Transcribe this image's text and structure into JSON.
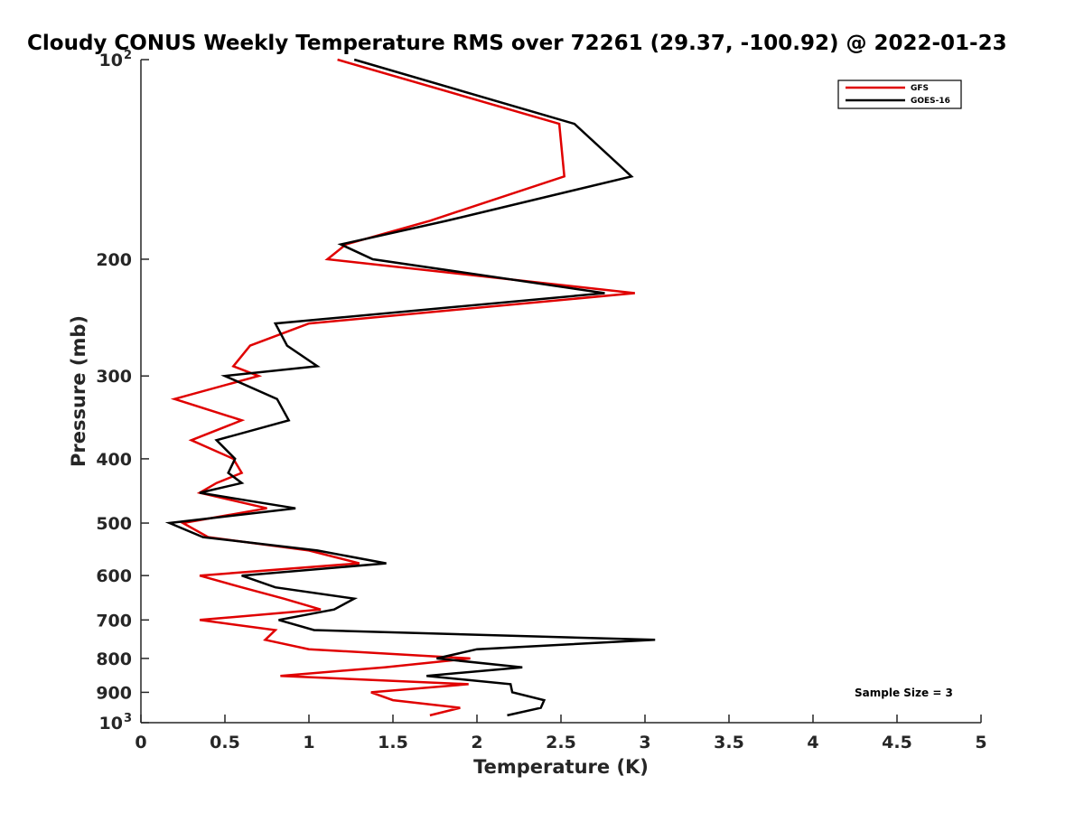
{
  "chart_data": {
    "type": "line",
    "title": "Cloudy CONUS Weekly Temperature RMS over 72261 (29.37, -100.92) @ 2022-01-23",
    "xlabel": "Temperature (K)",
    "ylabel": "Pressure (mb)",
    "xlim": [
      0,
      5
    ],
    "ylim": [
      100,
      1000
    ],
    "yscale": "log",
    "y_reversed": true,
    "grid": false,
    "legend_position": "top-right",
    "x_ticks": [
      "0",
      "0.5",
      "1",
      "1.5",
      "2",
      "2.5",
      "3",
      "3.5",
      "4",
      "4.5",
      "5"
    ],
    "y_ticks": [
      {
        "value": 100,
        "label": "10",
        "sup": "2"
      },
      {
        "value": 200,
        "label": "200",
        "sup": ""
      },
      {
        "value": 300,
        "label": "300",
        "sup": ""
      },
      {
        "value": 400,
        "label": "400",
        "sup": ""
      },
      {
        "value": 500,
        "label": "500",
        "sup": ""
      },
      {
        "value": 600,
        "label": "600",
        "sup": ""
      },
      {
        "value": 700,
        "label": "700",
        "sup": ""
      },
      {
        "value": 800,
        "label": "800",
        "sup": ""
      },
      {
        "value": 900,
        "label": "900",
        "sup": ""
      },
      {
        "value": 1000,
        "label": "10",
        "sup": "3"
      }
    ],
    "annotation": "Sample Size = 3",
    "series": [
      {
        "name": "GFS",
        "color": "#e00000",
        "points": [
          [
            1.17,
            100
          ],
          [
            2.49,
            125
          ],
          [
            2.52,
            150
          ],
          [
            1.72,
            175
          ],
          [
            1.22,
            190
          ],
          [
            1.11,
            200
          ],
          [
            2.94,
            225
          ],
          [
            1.0,
            250
          ],
          [
            0.65,
            270
          ],
          [
            0.55,
            290
          ],
          [
            0.7,
            300
          ],
          [
            0.2,
            325
          ],
          [
            0.6,
            350
          ],
          [
            0.3,
            375
          ],
          [
            0.55,
            400
          ],
          [
            0.6,
            420
          ],
          [
            0.45,
            435
          ],
          [
            0.35,
            450
          ],
          [
            0.75,
            475
          ],
          [
            0.25,
            500
          ],
          [
            0.4,
            525
          ],
          [
            1.0,
            550
          ],
          [
            1.3,
            575
          ],
          [
            0.35,
            600
          ],
          [
            0.6,
            625
          ],
          [
            0.85,
            650
          ],
          [
            1.07,
            675
          ],
          [
            0.35,
            700
          ],
          [
            0.8,
            725
          ],
          [
            0.74,
            750
          ],
          [
            1.0,
            775
          ],
          [
            1.96,
            800
          ],
          [
            1.45,
            825
          ],
          [
            0.83,
            850
          ],
          [
            1.95,
            875
          ],
          [
            1.37,
            900
          ],
          [
            1.5,
            925
          ],
          [
            1.9,
            950
          ],
          [
            1.72,
            975
          ]
        ]
      },
      {
        "name": "GOES-16",
        "color": "#000000",
        "points": [
          [
            1.27,
            100
          ],
          [
            2.58,
            125
          ],
          [
            2.92,
            150
          ],
          [
            1.82,
            175
          ],
          [
            1.19,
            190
          ],
          [
            1.38,
            200
          ],
          [
            2.76,
            225
          ],
          [
            0.8,
            250
          ],
          [
            0.87,
            270
          ],
          [
            1.05,
            290
          ],
          [
            0.5,
            300
          ],
          [
            0.81,
            325
          ],
          [
            0.88,
            350
          ],
          [
            0.45,
            375
          ],
          [
            0.56,
            400
          ],
          [
            0.52,
            420
          ],
          [
            0.6,
            435
          ],
          [
            0.35,
            450
          ],
          [
            0.92,
            475
          ],
          [
            0.17,
            500
          ],
          [
            0.37,
            525
          ],
          [
            1.05,
            550
          ],
          [
            1.46,
            575
          ],
          [
            0.6,
            600
          ],
          [
            0.8,
            625
          ],
          [
            1.27,
            650
          ],
          [
            1.15,
            675
          ],
          [
            0.82,
            700
          ],
          [
            1.03,
            725
          ],
          [
            3.06,
            750
          ],
          [
            2.0,
            775
          ],
          [
            1.76,
            800
          ],
          [
            2.27,
            825
          ],
          [
            1.7,
            850
          ],
          [
            2.2,
            875
          ],
          [
            2.21,
            900
          ],
          [
            2.4,
            925
          ],
          [
            2.38,
            950
          ],
          [
            2.18,
            975
          ]
        ]
      }
    ]
  }
}
